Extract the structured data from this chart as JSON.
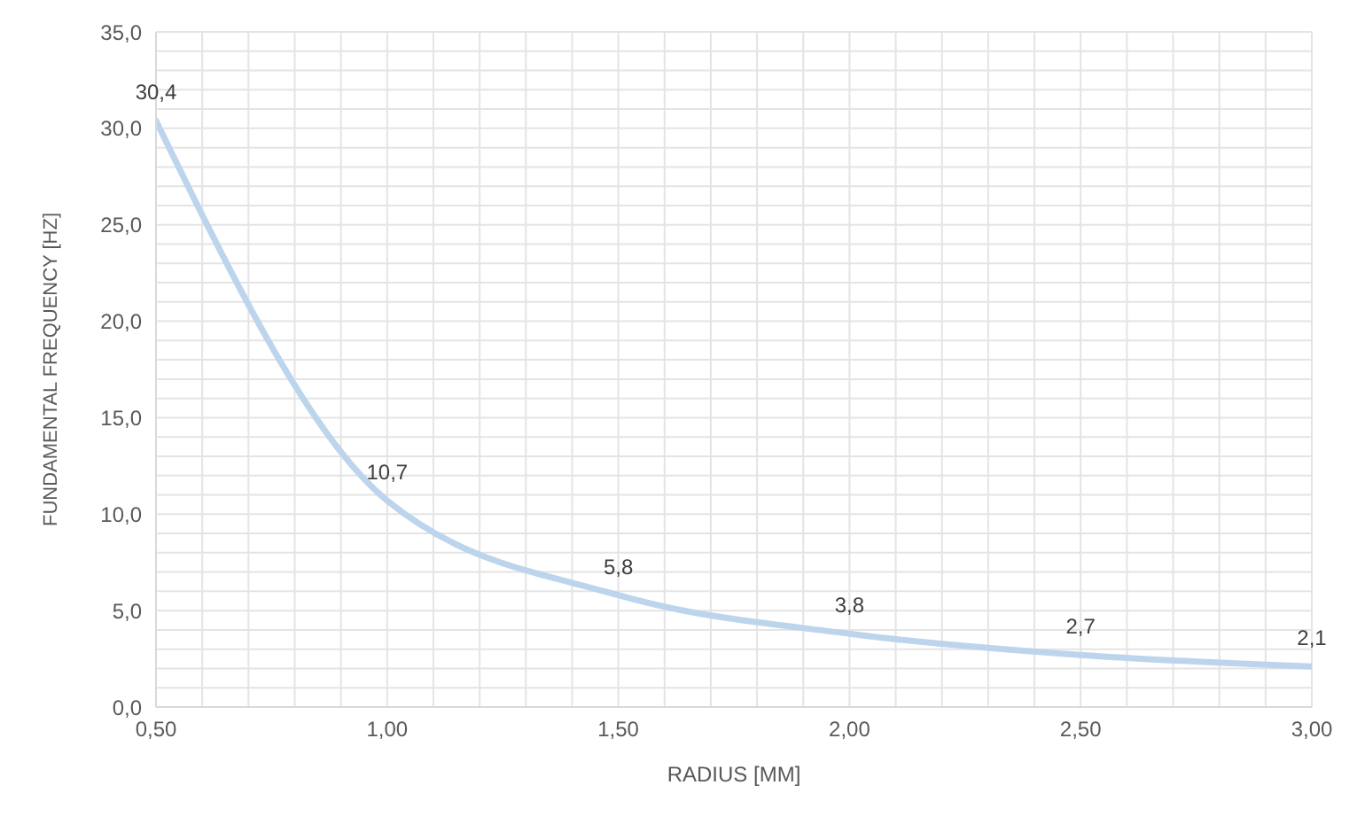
{
  "chart_data": {
    "type": "line",
    "xlabel": "RADIUS [MM]",
    "ylabel": "FUNDAMENTAL FREQUENCY [HZ]",
    "x": [
      0.5,
      1.0,
      1.5,
      2.0,
      2.5,
      3.0
    ],
    "series": [
      {
        "color": "#bdd5ec",
        "values": [
          30.4,
          10.7,
          5.8,
          3.8,
          2.7,
          2.1
        ],
        "value_labels": [
          "30,4",
          "10,7",
          "5,8",
          "3,8",
          "2,7",
          "2,1"
        ]
      }
    ],
    "xlim": [
      0.5,
      3.0
    ],
    "xticks": [
      {
        "value": 0.5,
        "label": "0,50"
      },
      {
        "value": 0.6,
        "label": null
      },
      {
        "value": 0.7,
        "label": null
      },
      {
        "value": 0.8,
        "label": null
      },
      {
        "value": 0.9,
        "label": null
      },
      {
        "value": 1.0,
        "label": "1,00"
      },
      {
        "value": 1.1,
        "label": null
      },
      {
        "value": 1.2,
        "label": null
      },
      {
        "value": 1.3,
        "label": null
      },
      {
        "value": 1.4,
        "label": null
      },
      {
        "value": 1.5,
        "label": "1,50"
      },
      {
        "value": 1.6,
        "label": null
      },
      {
        "value": 1.7,
        "label": null
      },
      {
        "value": 1.8,
        "label": null
      },
      {
        "value": 1.9,
        "label": null
      },
      {
        "value": 2.0,
        "label": "2,00"
      },
      {
        "value": 2.1,
        "label": null
      },
      {
        "value": 2.2,
        "label": null
      },
      {
        "value": 2.3,
        "label": null
      },
      {
        "value": 2.4,
        "label": null
      },
      {
        "value": 2.5,
        "label": "2,50"
      },
      {
        "value": 2.6,
        "label": null
      },
      {
        "value": 2.7,
        "label": null
      },
      {
        "value": 2.8,
        "label": null
      },
      {
        "value": 2.9,
        "label": null
      },
      {
        "value": 3.0,
        "label": "3,00"
      }
    ],
    "ylim": [
      0,
      35
    ],
    "yticks": [
      {
        "value": 0,
        "label": "0,0"
      },
      {
        "value": 1,
        "label": null
      },
      {
        "value": 2,
        "label": null
      },
      {
        "value": 3,
        "label": null
      },
      {
        "value": 4,
        "label": null
      },
      {
        "value": 5,
        "label": "5,0"
      },
      {
        "value": 6,
        "label": null
      },
      {
        "value": 7,
        "label": null
      },
      {
        "value": 8,
        "label": null
      },
      {
        "value": 9,
        "label": null
      },
      {
        "value": 10,
        "label": "10,0"
      },
      {
        "value": 11,
        "label": null
      },
      {
        "value": 12,
        "label": null
      },
      {
        "value": 13,
        "label": null
      },
      {
        "value": 14,
        "label": null
      },
      {
        "value": 15,
        "label": "15,0"
      },
      {
        "value": 16,
        "label": null
      },
      {
        "value": 17,
        "label": null
      },
      {
        "value": 18,
        "label": null
      },
      {
        "value": 19,
        "label": null
      },
      {
        "value": 20,
        "label": "20,0"
      },
      {
        "value": 21,
        "label": null
      },
      {
        "value": 22,
        "label": null
      },
      {
        "value": 23,
        "label": null
      },
      {
        "value": 24,
        "label": null
      },
      {
        "value": 25,
        "label": "25,0"
      },
      {
        "value": 26,
        "label": null
      },
      {
        "value": 27,
        "label": null
      },
      {
        "value": 28,
        "label": null
      },
      {
        "value": 29,
        "label": null
      },
      {
        "value": 30,
        "label": "30,0"
      },
      {
        "value": 31,
        "label": null
      },
      {
        "value": 32,
        "label": null
      },
      {
        "value": 33,
        "label": null
      },
      {
        "value": 34,
        "label": null
      },
      {
        "value": 35,
        "label": "35,0"
      }
    ],
    "grid": true,
    "marker": "none",
    "line_style": "solid",
    "legend": false
  }
}
